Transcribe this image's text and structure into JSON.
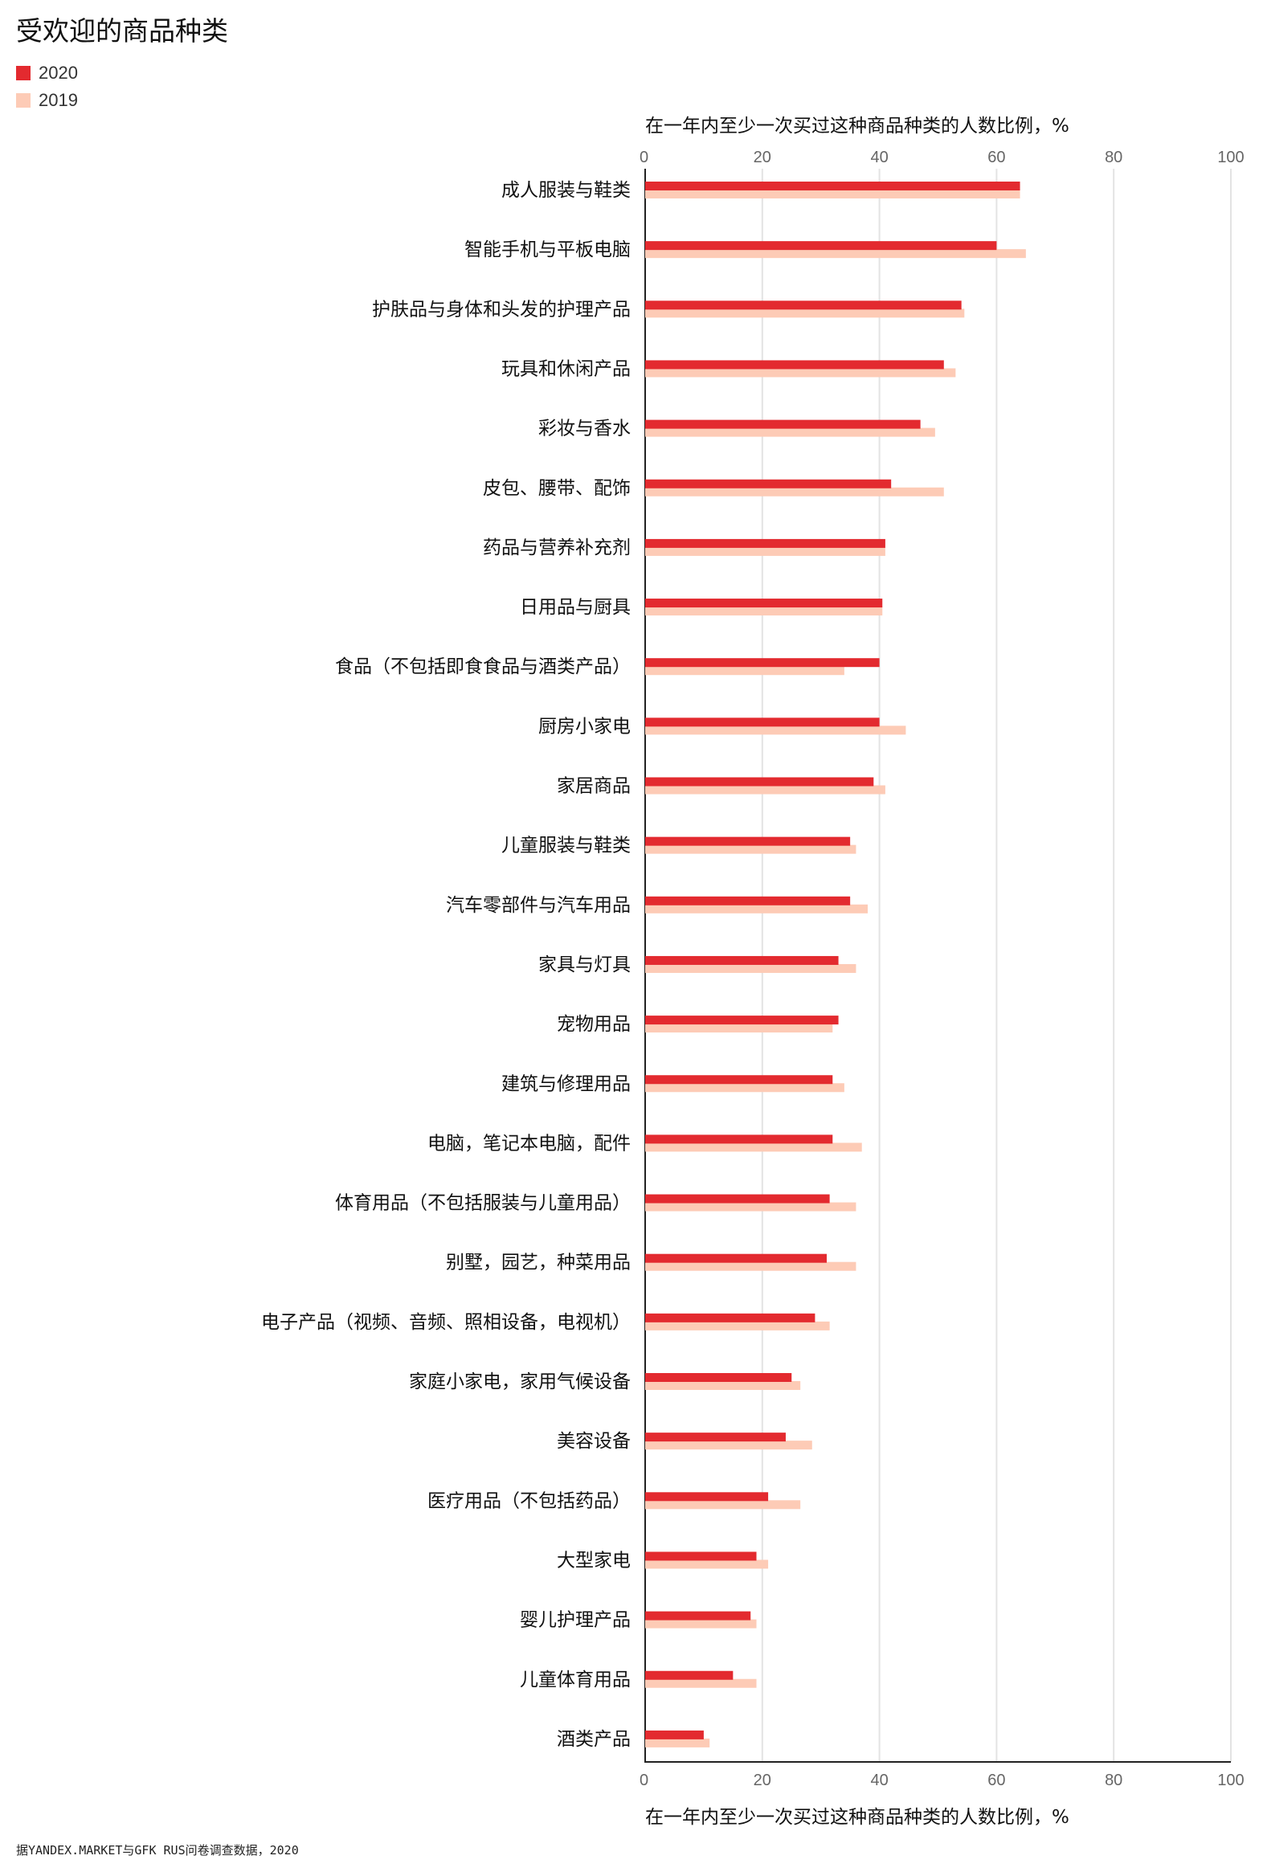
{
  "title": "受欢迎的商品种类",
  "source": "据YANDEX.MARKET与GFK RUS问卷调查数据，2020",
  "colors": {
    "s2020": "#e32a2f",
    "s2019": "#fdcbb6",
    "grid": "#e3e3e3",
    "axis": "#222222"
  },
  "chart_data": {
    "type": "bar",
    "orientation": "horizontal",
    "title": "受欢迎的商品种类",
    "xlabel": "在一年内至少一次买过这种商品种类的人数比例，%",
    "xlim": [
      0,
      100
    ],
    "xticks": [
      "0",
      "20",
      "40",
      "60",
      "80",
      "100"
    ],
    "grid": true,
    "legend_position": "top-left",
    "categories": [
      "成人服装与鞋类",
      "智能手机与平板电脑",
      "护肤品与身体和头发的护理产品",
      "玩具和休闲产品",
      "彩妆与香水",
      "皮包、腰带、配饰",
      "药品与营养补充剂",
      "日用品与厨具",
      "食品（不包括即食食品与酒类产品）",
      "厨房小家电",
      "家居商品",
      "儿童服装与鞋类",
      "汽车零部件与汽车用品",
      "家具与灯具",
      "宠物用品",
      "建筑与修理用品",
      "电脑，笔记本电脑，配件",
      "体育用品（不包括服装与儿童用品）",
      "别墅，园艺，种菜用品",
      "电子产品（视频、音频、照相设备，电视机）",
      "家庭小家电，家用气候设备",
      "美容设备",
      "医疗用品（不包括药品）",
      "大型家电",
      "婴儿护理产品",
      "儿童体育用品",
      "酒类产品"
    ],
    "series": [
      {
        "name": "2020",
        "values": [
          64,
          60,
          54,
          51,
          47,
          42,
          41,
          40.5,
          40,
          40,
          39,
          35,
          35,
          33,
          33,
          32,
          32,
          31.5,
          31,
          29,
          25,
          24,
          21,
          19,
          18,
          15,
          10
        ]
      },
      {
        "name": "2019",
        "values": [
          64,
          65,
          54.5,
          53,
          49.5,
          51,
          41,
          40.5,
          34,
          44.5,
          41,
          36,
          38,
          36,
          32,
          34,
          37,
          36,
          36,
          31.5,
          26.5,
          28.5,
          26.5,
          21,
          19,
          19,
          11
        ]
      }
    ]
  }
}
